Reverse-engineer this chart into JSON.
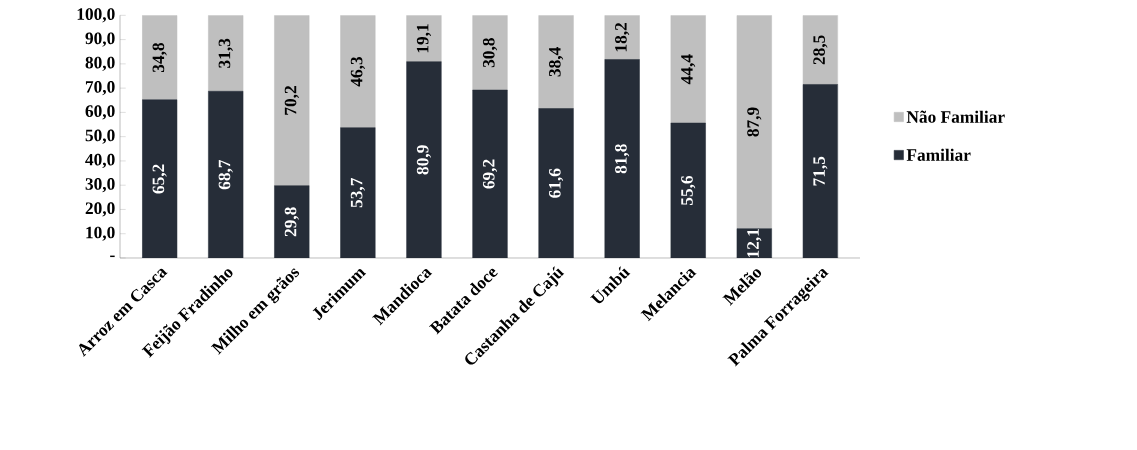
{
  "chart_data": {
    "type": "bar",
    "stacked": true,
    "categories": [
      "Arroz em Casca",
      "Feijão Fradinho",
      "Milho em grãos",
      "Jerimum",
      "Mandioca",
      "Batata doce",
      "Castanha de Cajú",
      "Umbú",
      "Melancia",
      "Melão",
      "Palma Forrageira"
    ],
    "series": [
      {
        "name": "Familiar",
        "color": "#262d38",
        "values": [
          65.2,
          68.7,
          29.8,
          53.7,
          80.9,
          69.2,
          61.6,
          81.8,
          55.6,
          12.1,
          71.5
        ],
        "value_labels": [
          "65,2",
          "68,7",
          "29,8",
          "53,7",
          "80,9",
          "69,2",
          "61,6",
          "81,8",
          "55,6",
          "12,1",
          "71,5"
        ]
      },
      {
        "name": "Não Familiar",
        "color": "#bfbfbf",
        "values": [
          34.8,
          31.3,
          70.2,
          46.3,
          19.1,
          30.8,
          38.4,
          18.2,
          44.4,
          87.9,
          28.5
        ],
        "value_labels": [
          "34,8",
          "31,3",
          "70,2",
          "46,3",
          "19,1",
          "30,8",
          "38,4",
          "18,2",
          "44,4",
          "87,9",
          "28,5"
        ]
      }
    ],
    "ylim": [
      0,
      100
    ],
    "yticks": [
      {
        "value": 0,
        "label": "-"
      },
      {
        "value": 10,
        "label": "10,0"
      },
      {
        "value": 20,
        "label": "20,0"
      },
      {
        "value": 30,
        "label": "30,0"
      },
      {
        "value": 40,
        "label": "40,0"
      },
      {
        "value": 50,
        "label": "50,0"
      },
      {
        "value": 60,
        "label": "60,0"
      },
      {
        "value": 70,
        "label": "70,0"
      },
      {
        "value": 80,
        "label": "80,0"
      },
      {
        "value": 90,
        "label": "90,0"
      },
      {
        "value": 100,
        "label": "100,0"
      }
    ],
    "legend": "right",
    "grid": false
  }
}
